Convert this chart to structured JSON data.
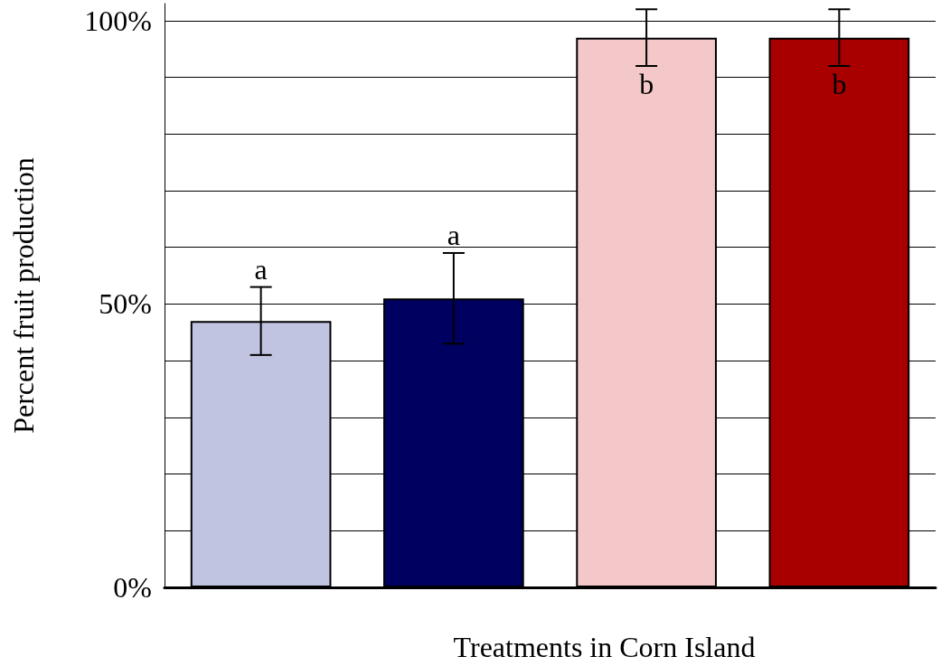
{
  "chart_data": {
    "type": "bar",
    "xlabel": "Treatments in Corn Island",
    "ylabel": "Percent fruit production",
    "categories": [
      null,
      null,
      null,
      null
    ],
    "values": [
      47,
      51,
      97,
      97
    ],
    "colors": [
      "#c0c4e0",
      "#000060",
      "#f4c8c8",
      "#a80000"
    ],
    "errors": [
      [
        41,
        53
      ],
      [
        43,
        59
      ],
      [
        92,
        102
      ],
      [
        92,
        102
      ]
    ],
    "annotations": [
      "a",
      "a",
      "b",
      "b"
    ],
    "ylim": [
      0,
      103
    ],
    "yticks": [
      {
        "value": 0,
        "label": "0%"
      },
      {
        "value": 10,
        "label": null
      },
      {
        "value": 20,
        "label": null
      },
      {
        "value": 30,
        "label": null
      },
      {
        "value": 40,
        "label": null
      },
      {
        "value": 50,
        "label": "50%"
      },
      {
        "value": 60,
        "label": null
      },
      {
        "value": 70,
        "label": null
      },
      {
        "value": 80,
        "label": null
      },
      {
        "value": 90,
        "label": null
      },
      {
        "value": 100,
        "label": "100%"
      }
    ],
    "grid": "y"
  }
}
